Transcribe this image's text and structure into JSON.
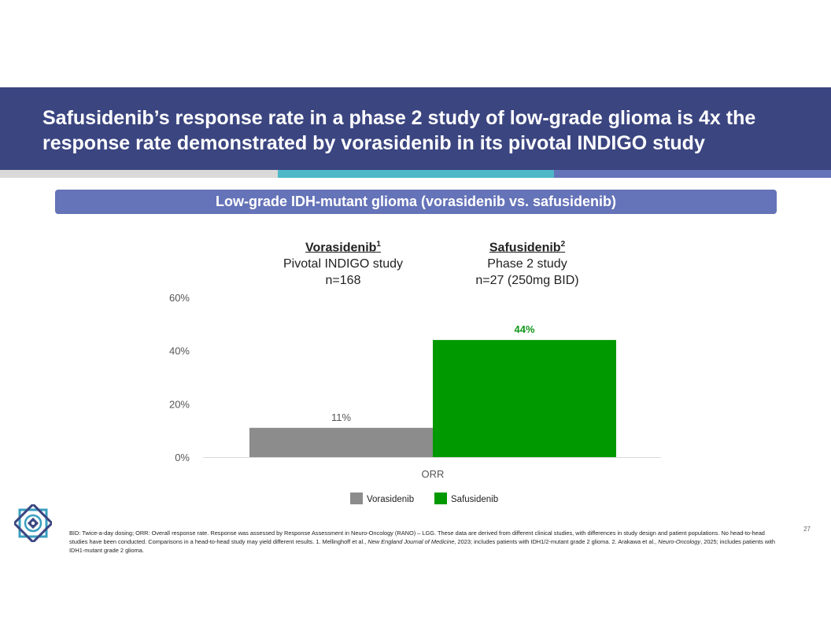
{
  "slide": {
    "title_line1": "Safusidenib’s response rate in a phase 2 study of low-grade glioma is 4x the",
    "title_line2": "response rate demonstrated by vorasidenib in its pivotal INDIGO study",
    "subheader": "Low-grade IDH-mutant glioma (vorasidenib vs. safusidenib)",
    "page_number": "27",
    "accent_colors": {
      "title_band": "#3b4580",
      "subheader": "#6573b8",
      "stripe_gray": "#d9d9d9",
      "stripe_teal": "#4fb8c8",
      "stripe_blue": "#6573b8"
    }
  },
  "columns": [
    {
      "heading": "Vorasidenib",
      "sup": "1",
      "line2": "Pivotal INDIGO study",
      "line3": "n=168"
    },
    {
      "heading": "Safusidenib",
      "sup": "2",
      "line2": "Phase 2 study",
      "line3": "n=27 (250mg BID)"
    }
  ],
  "chart_data": {
    "type": "bar",
    "categories": [
      "ORR"
    ],
    "series": [
      {
        "name": "Vorasidenib",
        "values": [
          11
        ],
        "label": "11%",
        "color": "#8c8c8c",
        "label_color": "#555555"
      },
      {
        "name": "Safusidenib",
        "values": [
          44
        ],
        "label": "44%",
        "color": "#009900",
        "label_color": "#109618"
      }
    ],
    "ylim": [
      0,
      60
    ],
    "yticks": [
      0,
      20,
      40,
      60
    ],
    "ytick_labels": [
      "0%",
      "20%",
      "40%",
      "60%"
    ],
    "grid": false,
    "legend": "bottom"
  },
  "footnote": {
    "part1": "BID: Twice-a-day dosing; ORR: Overall response rate. Response was assessed by Response Assessment in Neuro-Oncology (RANO) – LGG. These data are derived from different clinical studies, with differences in study design and patient populations. No head-to-head studies have been conducted. Comparisons in a head-to-head study may yield different results. 1. Mellinghoff et al., ",
    "journal1": "New England Journal of Medicine",
    "part2": ", 2023; includes patients with IDH1/2-mutant grade 2 glioma. 2. Arakawa et al., ",
    "journal2": "Neuro-Oncology",
    "part3": ", 2025; includes patients with IDH1-mutant grade 2 glioma."
  },
  "logo": {
    "icon": "ornamental-star-logo-icon"
  }
}
